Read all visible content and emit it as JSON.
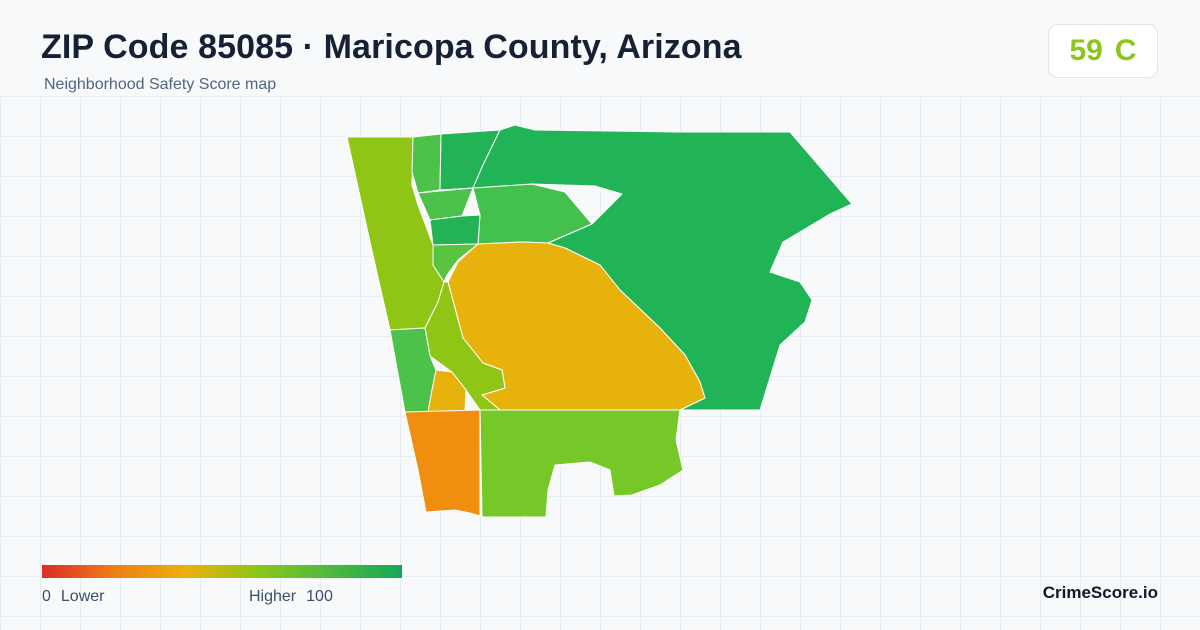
{
  "header": {
    "title": "ZIP Code 85085 · Maricopa County, Arizona",
    "subtitle": "Neighborhood Safety Score map"
  },
  "score": {
    "value": "59",
    "grade": "C",
    "color": "#8cc61a"
  },
  "legend": {
    "low_value": "0",
    "low_label": "Lower",
    "high_label": "Higher",
    "high_value": "100",
    "colors": [
      "#dc2b27",
      "#ef7d18",
      "#e9b10b",
      "#8dc51a",
      "#4cba3c",
      "#16a65a"
    ]
  },
  "brand": "CrimeScore.io",
  "map": {
    "regions": [
      {
        "name": "west-strip",
        "color": "#8fc616"
      },
      {
        "name": "north-narrow",
        "color": "#4cc24a"
      },
      {
        "name": "north-center",
        "color": "#23b356"
      },
      {
        "name": "north-central-small",
        "color": "#4cc24a"
      },
      {
        "name": "central-north",
        "color": "#44c04c"
      },
      {
        "name": "east-large",
        "color": "#20b457"
      },
      {
        "name": "west-central-small",
        "color": "#23b356"
      },
      {
        "name": "west-central-band",
        "color": "#58c440"
      },
      {
        "name": "central-large",
        "color": "#e8b20c"
      },
      {
        "name": "west-middle",
        "color": "#8fc616"
      },
      {
        "name": "southwest-upper",
        "color": "#4cc24a"
      },
      {
        "name": "southwest-small",
        "color": "#e8b20c"
      },
      {
        "name": "southwest-corner",
        "color": "#f08e10"
      },
      {
        "name": "south-central",
        "color": "#76c728"
      }
    ]
  }
}
